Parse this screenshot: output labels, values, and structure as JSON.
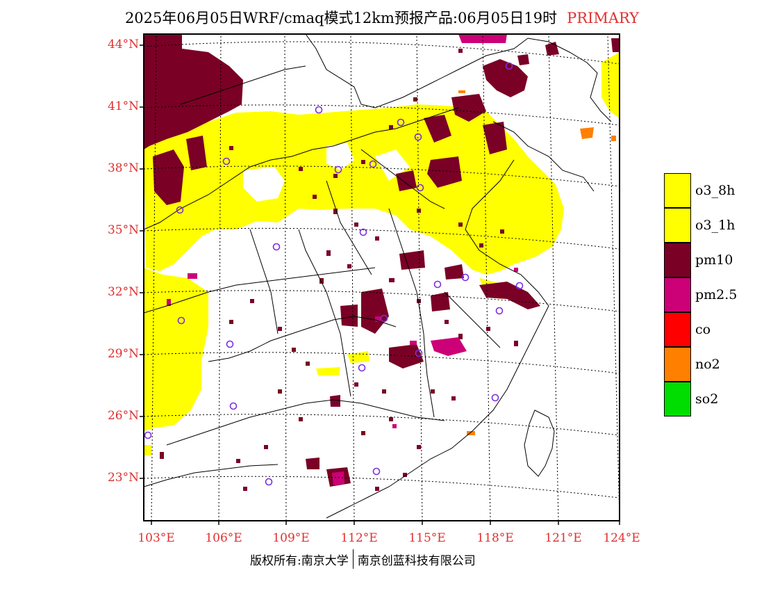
{
  "title": {
    "main": "2025年06月05日WRF/cmaq模式12km预报产品:06月05日19时",
    "tag": "PRIMARY"
  },
  "axes": {
    "lat_labels": [
      "44°N",
      "41°N",
      "38°N",
      "35°N",
      "32°N",
      "29°N",
      "26°N",
      "23°N"
    ],
    "lon_labels": [
      "103°E",
      "106°E",
      "109°E",
      "112°E",
      "115°E",
      "118°E",
      "121°E",
      "124°E"
    ]
  },
  "legend": [
    {
      "label": "o3_8h",
      "color": "#ffff00"
    },
    {
      "label": "o3_1h",
      "color": "#ffff00"
    },
    {
      "label": "pm10",
      "color": "#7a0026"
    },
    {
      "label": "pm2.5",
      "color": "#cc0077"
    },
    {
      "label": "co",
      "color": "#ff0000"
    },
    {
      "label": "no2",
      "color": "#ff8000"
    },
    {
      "label": "so2",
      "color": "#00dd00"
    }
  ],
  "footer": {
    "copyright": "版权所有:南京大学",
    "company": "南京创蓝科技有限公司"
  }
}
